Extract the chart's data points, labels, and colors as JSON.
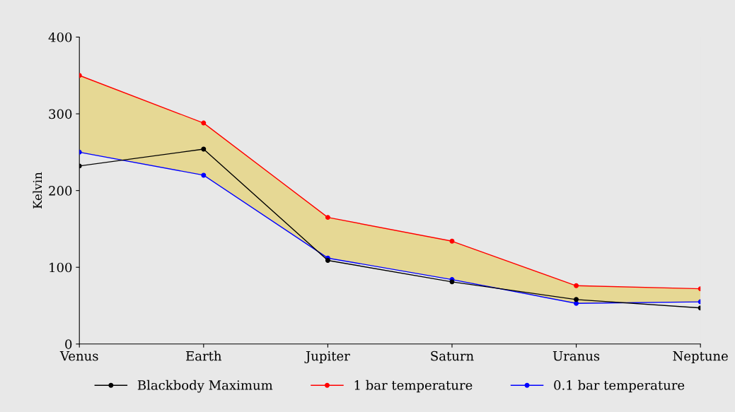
{
  "chart_data": {
    "type": "line",
    "ylabel": "Kelvin",
    "categories": [
      "Venus",
      "Earth",
      "Jupiter",
      "Saturn",
      "Uranus",
      "Neptune"
    ],
    "series": [
      {
        "name": "Blackbody Maximum",
        "color": "#000000",
        "values": [
          232,
          254,
          109,
          81,
          58,
          47
        ]
      },
      {
        "name": "1 bar temperature",
        "color": "#ff0000",
        "values": [
          350,
          288,
          165,
          134,
          76,
          72
        ],
        "lower": [
          250,
          220,
          112,
          84,
          53,
          55
        ],
        "upper": [
          350,
          288,
          165,
          134,
          76,
          72
        ]
      },
      {
        "name": "0.1 bar temperature",
        "color": "#0000ff",
        "values": [
          250,
          220,
          112,
          84,
          53,
          55
        ]
      }
    ],
    "ylim": [
      0,
      400
    ],
    "yticks": [
      0,
      100,
      200,
      300,
      400
    ],
    "grid": false,
    "legend": "bottom",
    "marker": "circle",
    "line_style": "solid"
  }
}
